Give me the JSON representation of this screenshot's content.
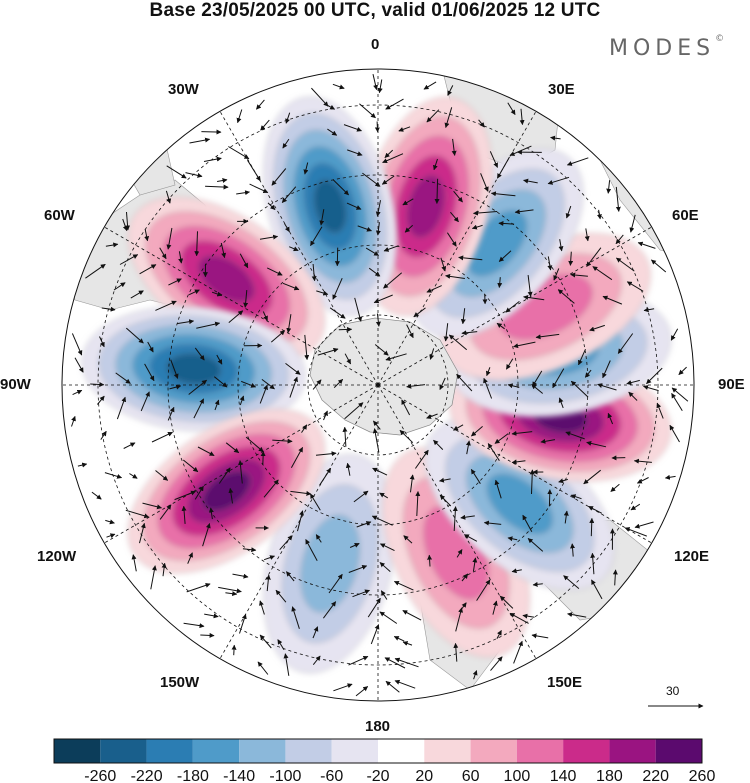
{
  "title": "Base 23/05/2025 00 UTC, valid 01/06/2025 12 UTC",
  "brand": "MODES",
  "brand_mark": "©",
  "longitude_labels": [
    "0",
    "30E",
    "60E",
    "90E",
    "120E",
    "150E",
    "180",
    "150W",
    "120W",
    "90W",
    "60W",
    "30W"
  ],
  "reference_vector": {
    "label": "30"
  },
  "colorbar": {
    "labels": [
      "-260",
      "-220",
      "-180",
      "-140",
      "-100",
      "-60",
      "-20",
      "20",
      "60",
      "100",
      "140",
      "180",
      "220",
      "260"
    ],
    "colors": [
      "#0c3d5a",
      "#195f8c",
      "#2b7db3",
      "#4f9bc9",
      "#8bb8da",
      "#c2cde6",
      "#e6e4f1",
      "#ffffff",
      "#f8d8dc",
      "#f3a9be",
      "#e870a8",
      "#cb2b8a",
      "#9a1481",
      "#5b0a6e"
    ]
  },
  "anomaly_centers": [
    {
      "lon": 345,
      "sign": "negative",
      "level": 2
    },
    {
      "lon": 25,
      "sign": "positive",
      "level": 2
    },
    {
      "lon": 50,
      "sign": "negative",
      "level": 3
    },
    {
      "lon": 80,
      "sign": "positive",
      "level": 5
    },
    {
      "lon": 100,
      "sign": "negative",
      "level": 3
    },
    {
      "lon": 115,
      "sign": "positive",
      "level": 2
    },
    {
      "lon": 140,
      "sign": "negative",
      "level": 3
    },
    {
      "lon": 165,
      "sign": "positive",
      "level": 4
    },
    {
      "lon": 195,
      "sign": "negative",
      "level": 5
    },
    {
      "lon": 235,
      "sign": "positive",
      "level": 4
    },
    {
      "lon": 265,
      "sign": "negative",
      "level": 5
    },
    {
      "lon": 305,
      "sign": "positive",
      "level": 5
    }
  ]
}
